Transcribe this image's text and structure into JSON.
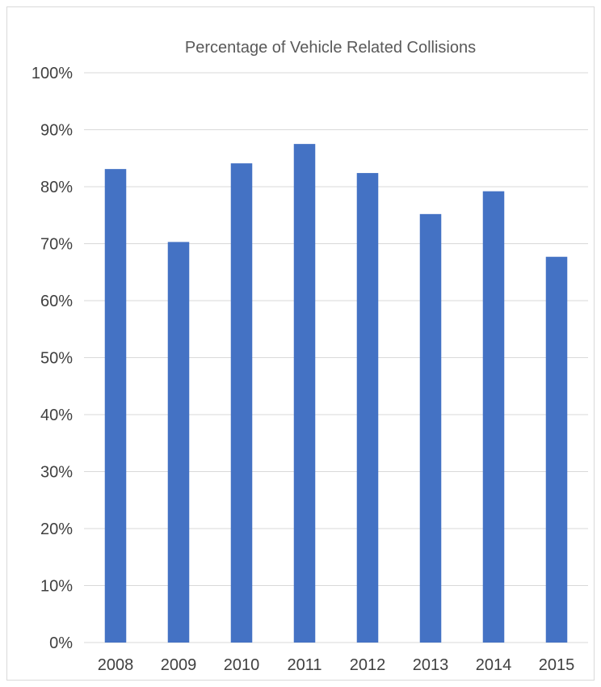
{
  "chart_data": {
    "type": "bar",
    "title": "Percentage of Vehicle Related Collisions",
    "xlabel": "",
    "ylabel": "",
    "categories": [
      "2008",
      "2009",
      "2010",
      "2011",
      "2012",
      "2013",
      "2014",
      "2015"
    ],
    "values": [
      0.831,
      0.703,
      0.841,
      0.875,
      0.824,
      0.752,
      0.792,
      0.677
    ],
    "ylim": [
      0,
      1
    ],
    "yticks": [
      "0%",
      "10%",
      "20%",
      "30%",
      "40%",
      "50%",
      "60%",
      "70%",
      "80%",
      "90%",
      "100%"
    ],
    "grid": "horizontal",
    "legend": "none",
    "bar_color": "#4472C4"
  }
}
